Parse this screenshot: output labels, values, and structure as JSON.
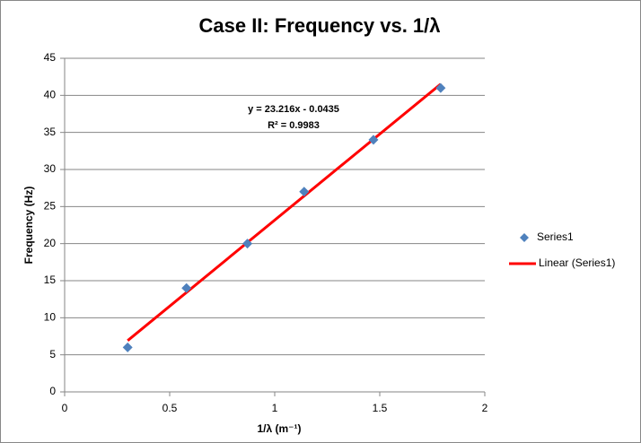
{
  "chart_data": {
    "type": "scatter",
    "title": "Case II: Frequency vs. 1/λ",
    "x_label": "1/λ (m⁻¹)",
    "y_label": "Frequency (Hz)",
    "series": [
      {
        "name": "Series1",
        "color": "#4f81bd",
        "x": [
          0.3,
          0.58,
          0.87,
          1.14,
          1.47,
          1.79
        ],
        "values": [
          6,
          14,
          20,
          27,
          34,
          41
        ]
      }
    ],
    "trendline": {
      "name": "Linear (Series1)",
      "color": "#ff0000",
      "slope": 23.216,
      "intercept": -0.0435,
      "equation": "y = 23.216x  - 0.0435",
      "r2_label": "R² = 0.9983"
    },
    "xlim": [
      0,
      2
    ],
    "xticks": [
      0,
      0.5,
      1,
      1.5,
      2
    ],
    "ylim": [
      0,
      45
    ],
    "yticks": [
      0,
      5,
      10,
      15,
      20,
      25,
      30,
      35,
      40,
      45
    ],
    "grid": true,
    "legend": "right"
  }
}
